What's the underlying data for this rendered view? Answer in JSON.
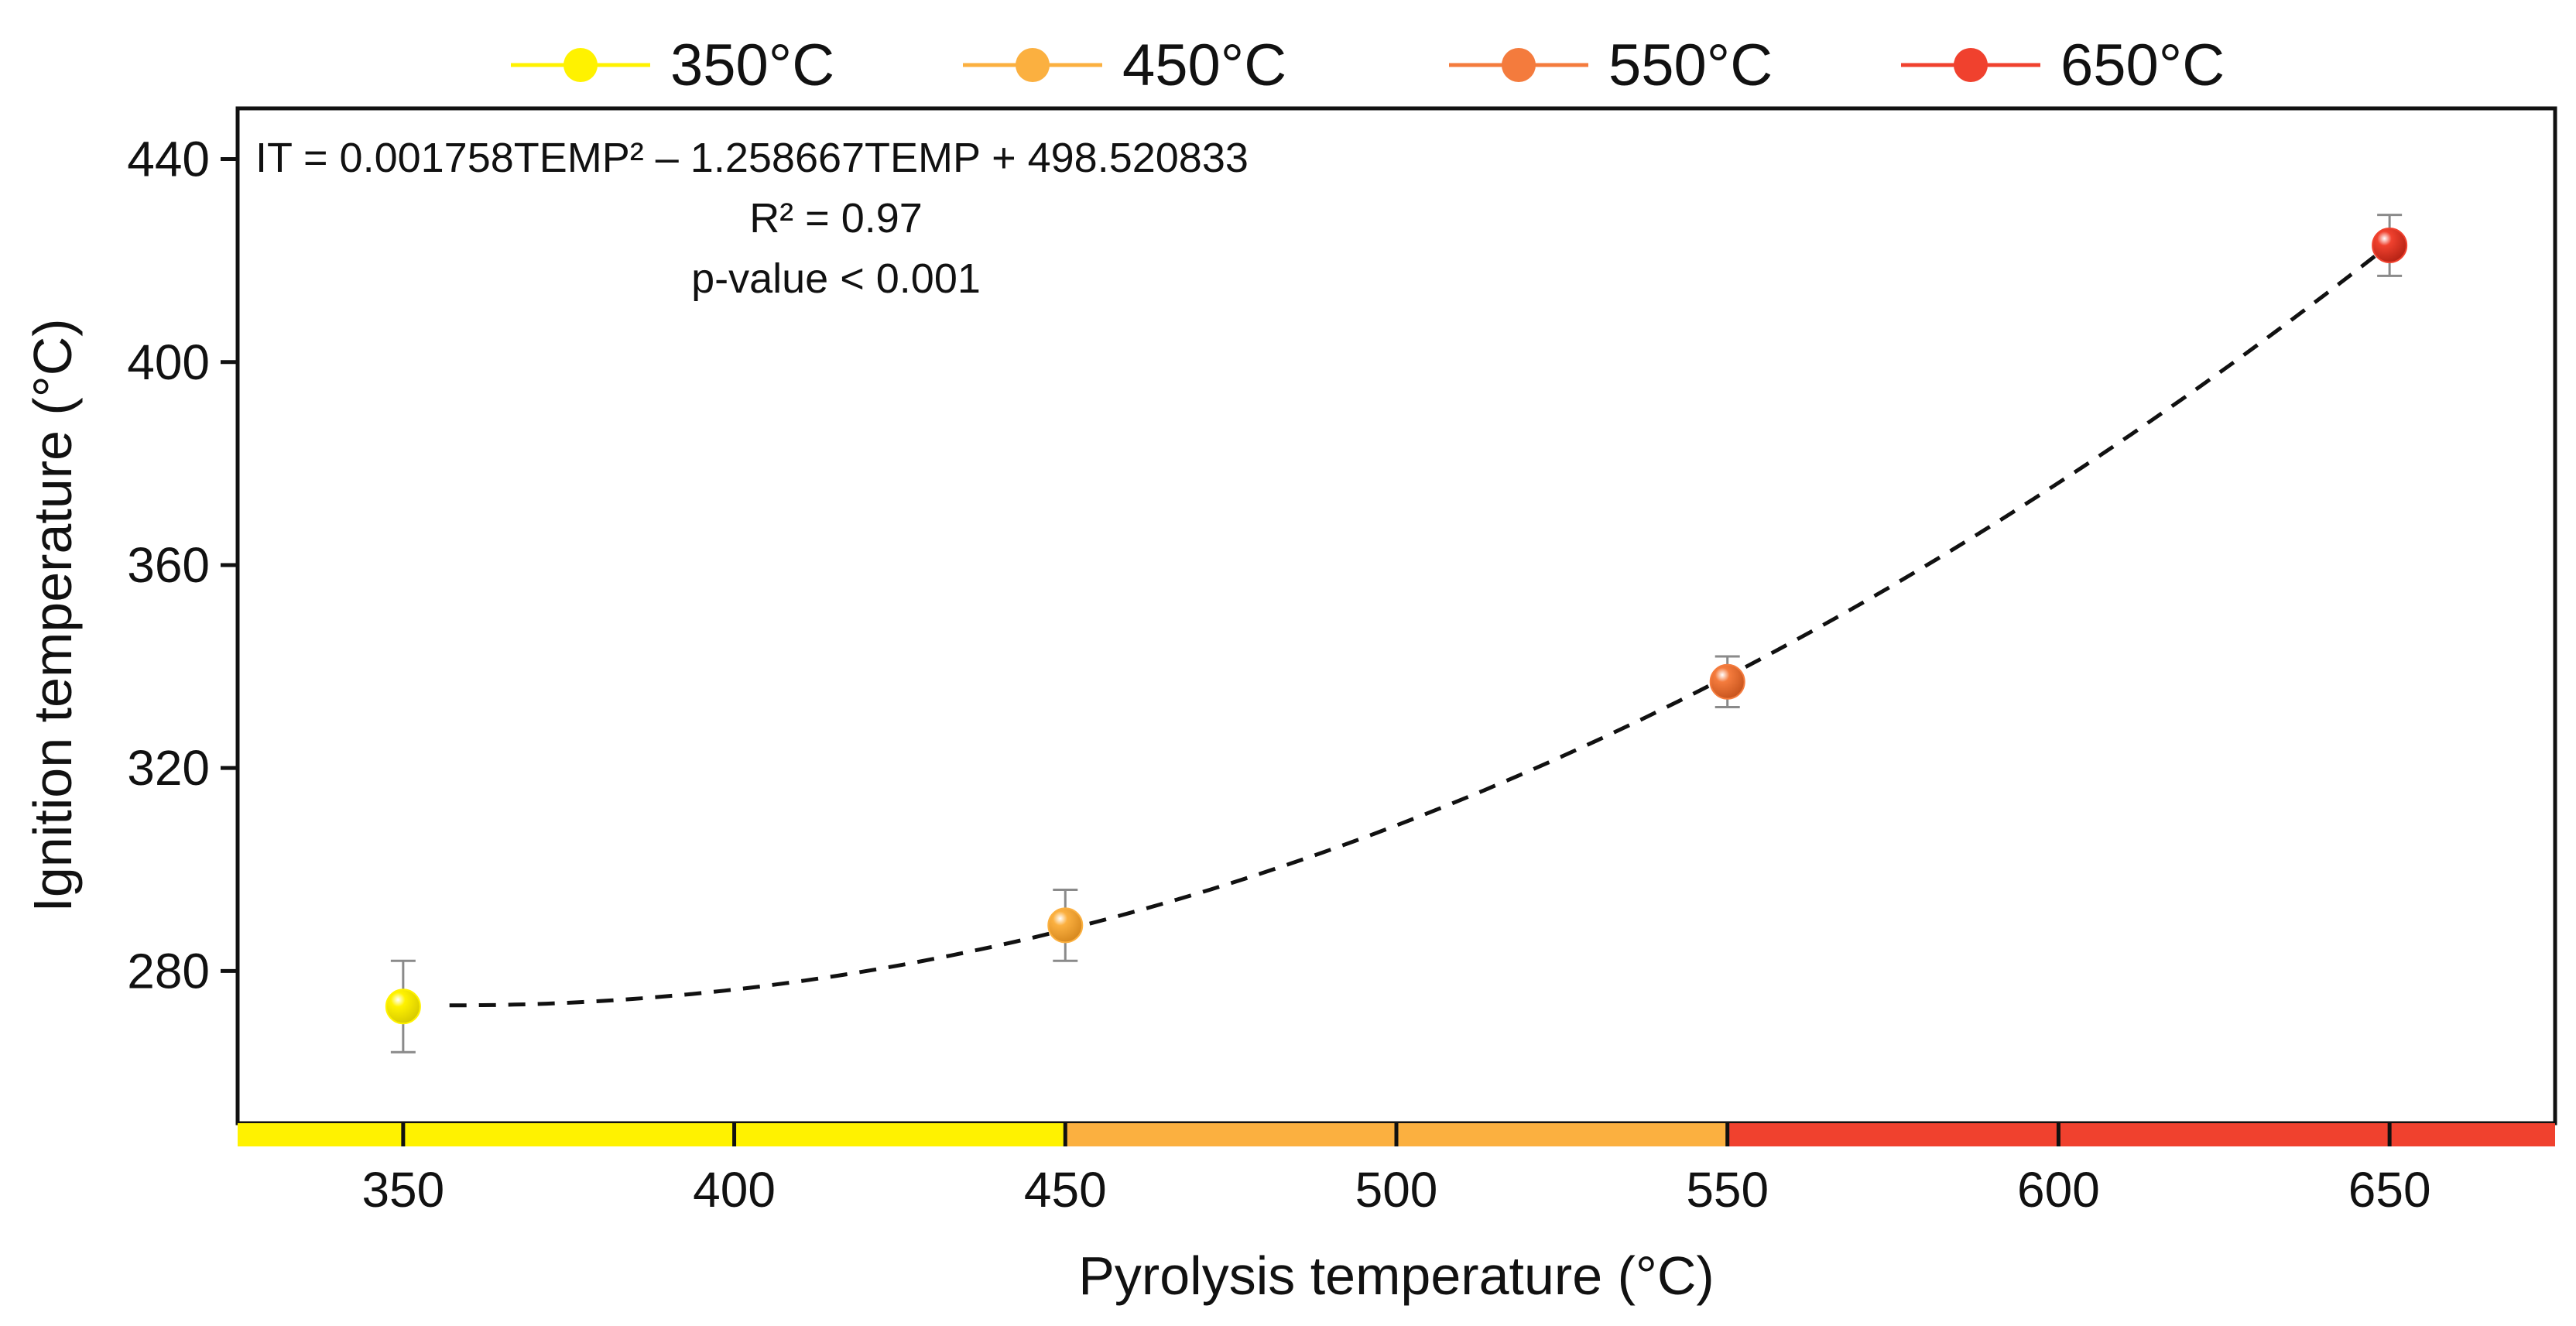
{
  "chart_data": {
    "type": "scatter",
    "xlabel": "Pyrolysis temperature (°C)",
    "ylabel": "Ignition temperature (°C)",
    "xlim": [
      325,
      675
    ],
    "ylim": [
      250,
      450
    ],
    "xticks": [
      350,
      400,
      450,
      500,
      550,
      600,
      650
    ],
    "yticks": [
      280,
      320,
      360,
      400,
      440
    ],
    "grid": false,
    "legend_position": "top",
    "series": [
      {
        "name": "350°C",
        "x": 350,
        "y": 273,
        "error_low": 264,
        "error_high": 282,
        "color": "#FFF200"
      },
      {
        "name": "450°C",
        "x": 450,
        "y": 289,
        "error_low": 282,
        "error_high": 296,
        "color": "#FBB040"
      },
      {
        "name": "550°C",
        "x": 550,
        "y": 337,
        "error_low": 332,
        "error_high": 342,
        "color": "#F47B3D"
      },
      {
        "name": "650°C",
        "x": 650,
        "y": 423,
        "error_low": 417,
        "error_high": 429,
        "color": "#F0412E"
      }
    ],
    "fit": {
      "style": "dashed",
      "a": 0.001758,
      "b": -1.258667,
      "c": 498.520833,
      "x_range": [
        357,
        650
      ]
    },
    "annotations": [
      "IT = 0.001758TEMP² – 1.258667TEMP + 498.520833",
      "R² = 0.97",
      "p-value < 0.001"
    ],
    "color_bands": [
      {
        "from": 325,
        "to": 450,
        "color": "#FFF200"
      },
      {
        "from": 450,
        "to": 550,
        "color": "#FBB040"
      },
      {
        "from": 550,
        "to": 675,
        "color": "#F0412E"
      }
    ]
  }
}
